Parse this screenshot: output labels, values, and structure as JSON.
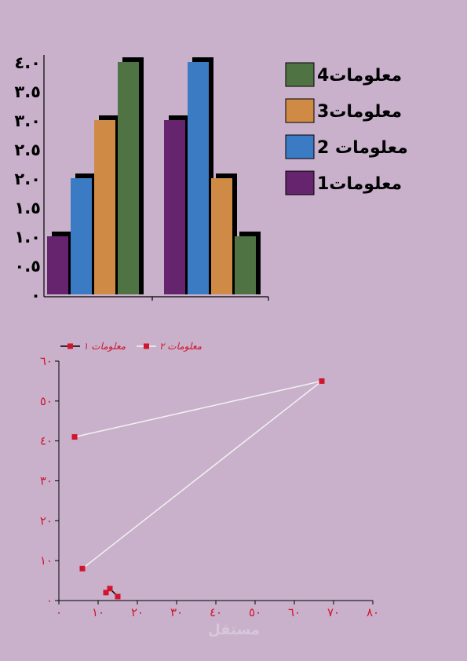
{
  "colors": {
    "background": "#c9b1cc",
    "series1": "#66246e",
    "series2": "#3b7bc4",
    "series3": "#cf8a45",
    "series4": "#4f7343",
    "accent_red": "#d2152a",
    "line_white": "#f2f2f2"
  },
  "watermark": "مستقل",
  "chart_data": [
    {
      "type": "bar",
      "categories": [
        "",
        ""
      ],
      "series": [
        {
          "name": "معلومات1",
          "values": [
            1.0,
            3.0
          ]
        },
        {
          "name": "معلومات 2",
          "values": [
            2.0,
            4.0
          ]
        },
        {
          "name": "معلومات3",
          "values": [
            3.0,
            2.0
          ]
        },
        {
          "name": "معلومات4",
          "values": [
            4.0,
            1.0
          ]
        }
      ],
      "ylim": [
        0,
        4
      ],
      "yticks": [
        "٠",
        "٠.٥",
        "١.٠",
        "١.٥",
        "٢.٠",
        "٢.٥",
        "٣.٠",
        "٣.٥",
        "٤.٠"
      ],
      "legend_position": "right",
      "grid": false
    },
    {
      "type": "scatter",
      "series": [
        {
          "name": "معلومات ١",
          "x": [
            12,
            13,
            15
          ],
          "y": [
            2,
            3,
            1
          ]
        },
        {
          "name": "معلومات ٢",
          "x": [
            4,
            67,
            6
          ],
          "y": [
            41,
            55,
            8
          ]
        }
      ],
      "xlim": [
        0,
        80
      ],
      "ylim": [
        0,
        60
      ],
      "xticks": [
        "٠",
        "١٠",
        "٢٠",
        "٣٠",
        "٤٠",
        "٥٠",
        "٦٠",
        "٧٠",
        "٨٠"
      ],
      "yticks": [
        "٠",
        "١٠",
        "٢٠",
        "٣٠",
        "٤٠",
        "٥٠",
        "٦٠"
      ],
      "legend_position": "top-left",
      "grid": false
    }
  ]
}
